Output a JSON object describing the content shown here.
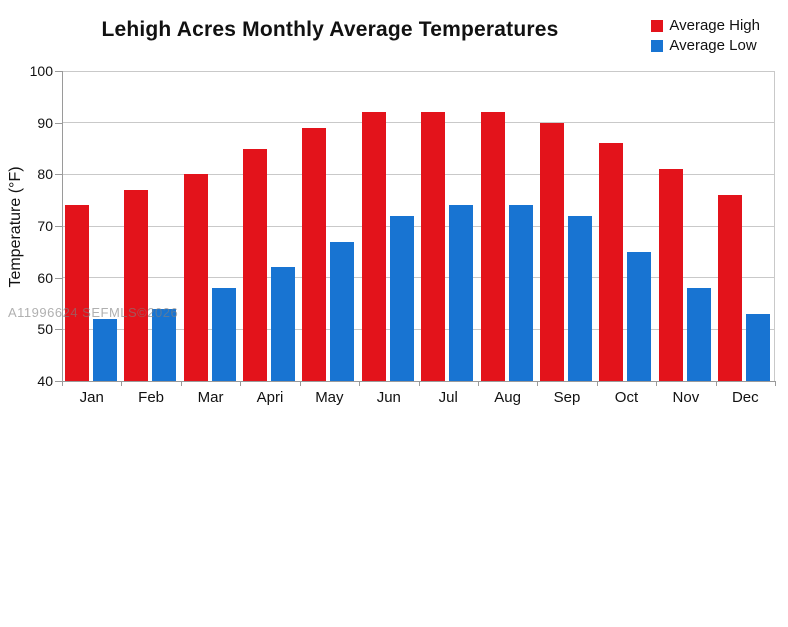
{
  "title": "Lehigh Acres Monthly Average Temperatures",
  "watermark": "A11996624 SEFMLS©2026",
  "legend": [
    {
      "label": "Average High",
      "color": "#e3131b"
    },
    {
      "label": "Average Low",
      "color": "#1874d2"
    }
  ],
  "chart_data": {
    "type": "bar",
    "title": "Lehigh Acres Monthly Average Temperatures",
    "categories": [
      "Jan",
      "Feb",
      "Mar",
      "Apri",
      "May",
      "Jun",
      "Jul",
      "Aug",
      "Sep",
      "Oct",
      "Nov",
      "Dec"
    ],
    "series": [
      {
        "name": "Average High",
        "color": "#e3131b",
        "values": [
          74,
          77,
          80,
          85,
          89,
          92,
          92,
          92,
          90,
          86,
          81,
          76
        ]
      },
      {
        "name": "Average Low",
        "color": "#1874d2",
        "values": [
          52,
          54,
          58,
          62,
          67,
          72,
          74,
          74,
          72,
          65,
          58,
          53
        ]
      }
    ],
    "xlabel": "",
    "ylabel": "Temperature (°F)",
    "ylim": [
      40,
      100
    ],
    "ytick_step": 10,
    "grid": true,
    "legend_position": "top-right"
  }
}
